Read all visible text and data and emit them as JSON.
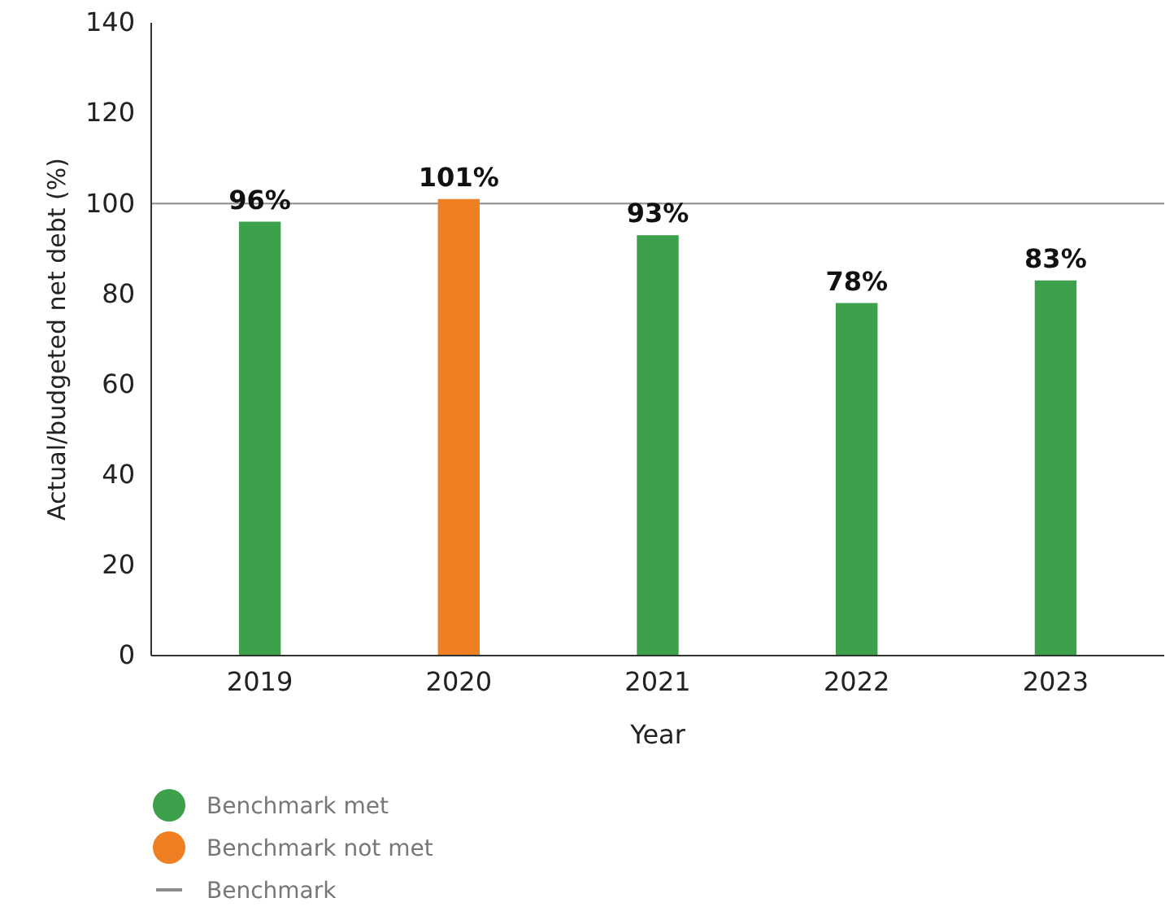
{
  "chart_data": {
    "type": "bar",
    "xlabel": "Year",
    "ylabel": "Actual/budgeted net debt (%)",
    "categories": [
      "2019",
      "2020",
      "2021",
      "2022",
      "2023"
    ],
    "series": [
      {
        "name": "Benchmark met",
        "color": "#3da04a",
        "values": [
          96,
          null,
          93,
          78,
          83
        ],
        "value_labels": [
          "96%",
          null,
          "93%",
          "78%",
          "83%"
        ]
      },
      {
        "name": "Benchmark not met",
        "color": "#f07f23",
        "values": [
          null,
          101,
          null,
          null,
          null
        ],
        "value_labels": [
          null,
          "101%",
          null,
          null,
          null
        ]
      }
    ],
    "ylim": [
      0,
      140
    ],
    "yticks": [
      0,
      20,
      40,
      60,
      80,
      100,
      120,
      140
    ],
    "grid": false,
    "legend": "bottom left",
    "ref_lines": [
      {
        "axis": "y",
        "value": 100,
        "label": "Benchmark",
        "color": "#8c8c8c"
      }
    ]
  }
}
